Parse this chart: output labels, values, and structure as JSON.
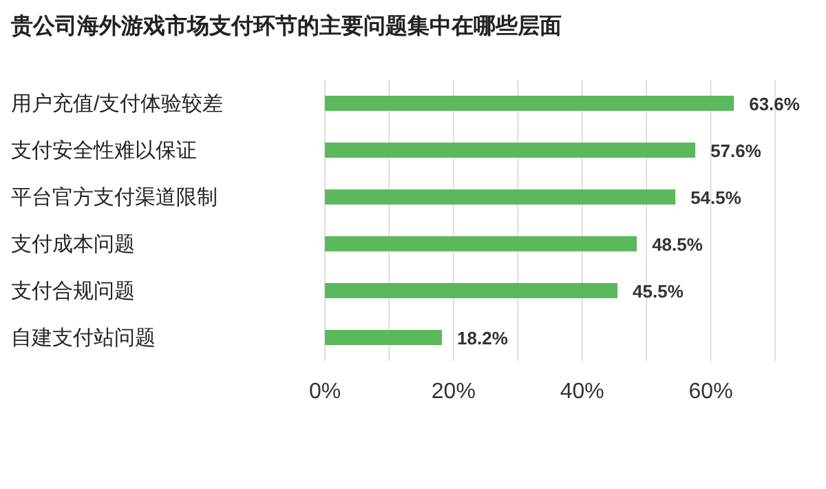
{
  "chart_data": {
    "type": "bar",
    "orientation": "horizontal",
    "title": "贵公司海外游戏市场支付环节的主要问题集中在哪些层面",
    "categories": [
      "用户充值/支付体验较差",
      "支付安全性难以保证",
      "平台官方支付渠道限制",
      "支付成本问题",
      "支付合规问题",
      "自建支付站问题"
    ],
    "values": [
      63.6,
      57.6,
      54.5,
      48.5,
      45.5,
      18.2
    ],
    "value_labels": [
      "63.6%",
      "57.6%",
      "54.5%",
      "48.5%",
      "45.5%",
      "18.2%"
    ],
    "color": "#5cb85c",
    "xlim": [
      0,
      70
    ],
    "xticks": [
      {
        "value": 0,
        "label": "0%"
      },
      {
        "value": 10,
        "label": null
      },
      {
        "value": 20,
        "label": "20%"
      },
      {
        "value": 30,
        "label": null
      },
      {
        "value": 40,
        "label": "40%"
      },
      {
        "value": 50,
        "label": null
      },
      {
        "value": 60,
        "label": "60%"
      },
      {
        "value": 70,
        "label": null
      }
    ],
    "grid": "x"
  }
}
